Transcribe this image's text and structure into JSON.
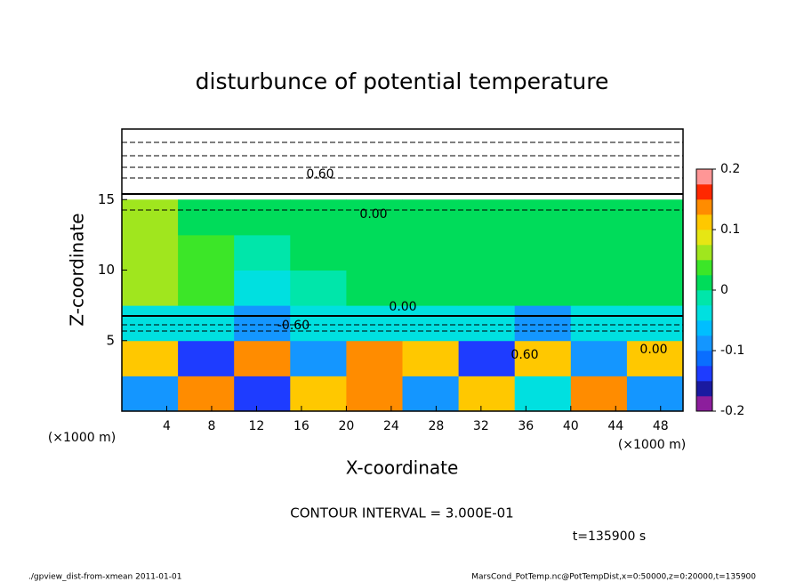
{
  "chart_data": {
    "type": "heatmap",
    "title": "disturbunce of potential temperature",
    "xlabel": "X-coordinate",
    "ylabel": "Z-coordinate",
    "x_unit": "(×1000 m)",
    "y_unit": "(×1000 m)",
    "xlim": [
      0,
      50
    ],
    "ylim": [
      0,
      20
    ],
    "xticks": [
      4,
      8,
      12,
      16,
      20,
      24,
      28,
      32,
      36,
      40,
      44,
      48
    ],
    "yticks": [
      5,
      10,
      15
    ],
    "xbins": [
      0,
      5,
      10,
      15,
      20,
      25,
      30,
      35,
      40,
      45,
      50
    ],
    "ybins": [
      0,
      2.5,
      5,
      7.5,
      10,
      12.5,
      15,
      17.5,
      20
    ],
    "values": [
      [
        -0.1,
        0.15,
        -0.15,
        0.1,
        0.15,
        -0.1,
        0.1,
        -0.05,
        0.15,
        -0.1
      ],
      [
        0.1,
        -0.15,
        0.15,
        -0.1,
        0.15,
        0.1,
        -0.15,
        0.1,
        -0.1,
        0.1
      ],
      [
        -0.05,
        -0.05,
        -0.1,
        -0.05,
        -0.05,
        -0.05,
        -0.05,
        -0.1,
        -0.05,
        -0.05
      ],
      [
        0.06,
        0.03,
        -0.05,
        -0.02,
        0.0,
        0.01,
        0.0,
        0.01,
        0.0,
        0.0
      ],
      [
        0.07,
        0.04,
        -0.02,
        0.0,
        0.01,
        0.02,
        0.02,
        0.0,
        0.0,
        0.0
      ],
      [
        0.05,
        0.02,
        0.0,
        0.0,
        0.0,
        0.0,
        0.0,
        0.0,
        0.0,
        0.0
      ],
      [
        null,
        null,
        null,
        null,
        null,
        null,
        null,
        null,
        null,
        null
      ],
      [
        null,
        null,
        null,
        null,
        null,
        null,
        null,
        null,
        null,
        null
      ]
    ],
    "clim": [
      -0.2,
      0.2
    ],
    "cticks": [
      -0.2,
      -0.1,
      0,
      0.1,
      0.2
    ],
    "colors": [
      "#8c1e9c",
      "#1a1aa0",
      "#1e3cff",
      "#0a6eff",
      "#1496ff",
      "#00beff",
      "#00e0e0",
      "#00e6aa",
      "#00dc5a",
      "#3ce628",
      "#a0e61e",
      "#e6e614",
      "#ffc800",
      "#ff8c00",
      "#ff2800",
      "#ff9696"
    ],
    "annotations": [
      "0.00",
      "0.00",
      "0.60",
      "-0.60",
      "0.60",
      "0.00"
    ],
    "contour_interval": "CONTOUR INTERVAL = 3.000E-01",
    "time_label": "t=135900 s",
    "footer_left": "./gpview_dist-from-xmean  2011-01-01",
    "footer_right": "MarsCond_PotTemp.nc@PotTempDist,x=0:50000,z=0:20000,t=135900"
  }
}
